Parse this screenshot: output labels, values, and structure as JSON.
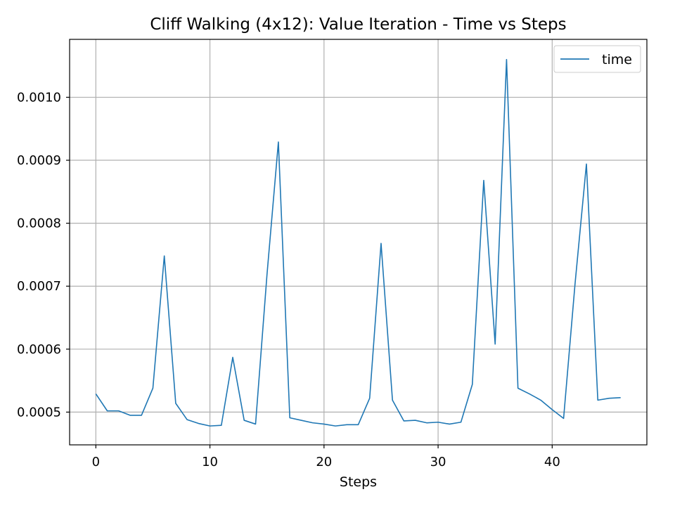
{
  "chart_data": {
    "type": "line",
    "title": "Cliff Walking (4x12): Value Iteration - Time vs Steps",
    "xlabel": "Steps",
    "ylabel": "",
    "xlim": [
      -2.3,
      48.3
    ],
    "ylim": [
      0.000448,
      0.001092
    ],
    "xticks": [
      0,
      10,
      20,
      30,
      40
    ],
    "xtick_labels": [
      "0",
      "10",
      "20",
      "30",
      "40"
    ],
    "yticks": [
      0.0005,
      0.0006,
      0.0007,
      0.0008,
      0.0009,
      0.001
    ],
    "ytick_labels": [
      "0.0005",
      "0.0006",
      "0.0007",
      "0.0008",
      "0.0009",
      "0.0010"
    ],
    "grid": true,
    "legend_position": "top-right",
    "series": [
      {
        "name": "time",
        "color": "#1f77b4",
        "x": [
          0,
          1,
          2,
          3,
          4,
          5,
          6,
          7,
          8,
          9,
          10,
          11,
          12,
          13,
          14,
          15,
          16,
          17,
          18,
          19,
          20,
          21,
          22,
          23,
          24,
          25,
          26,
          27,
          28,
          29,
          30,
          31,
          32,
          33,
          34,
          35,
          36,
          37,
          38,
          39,
          40,
          41,
          42,
          43,
          44,
          45,
          46
        ],
        "values": [
          0.000529,
          0.000502,
          0.000502,
          0.000495,
          0.000495,
          0.000538,
          0.000748,
          0.000514,
          0.000488,
          0.000482,
          0.000478,
          0.000479,
          0.000587,
          0.000487,
          0.000481,
          0.000718,
          0.000929,
          0.000491,
          0.000487,
          0.000483,
          0.000481,
          0.000478,
          0.00048,
          0.00048,
          0.000522,
          0.000768,
          0.000519,
          0.000486,
          0.000487,
          0.000483,
          0.000484,
          0.000481,
          0.000484,
          0.000544,
          0.000868,
          0.000608,
          0.00106,
          0.000538,
          0.000529,
          0.000519,
          0.000504,
          0.00049,
          0.000703,
          0.000894,
          0.000519,
          0.000522,
          0.000523
        ]
      }
    ]
  }
}
